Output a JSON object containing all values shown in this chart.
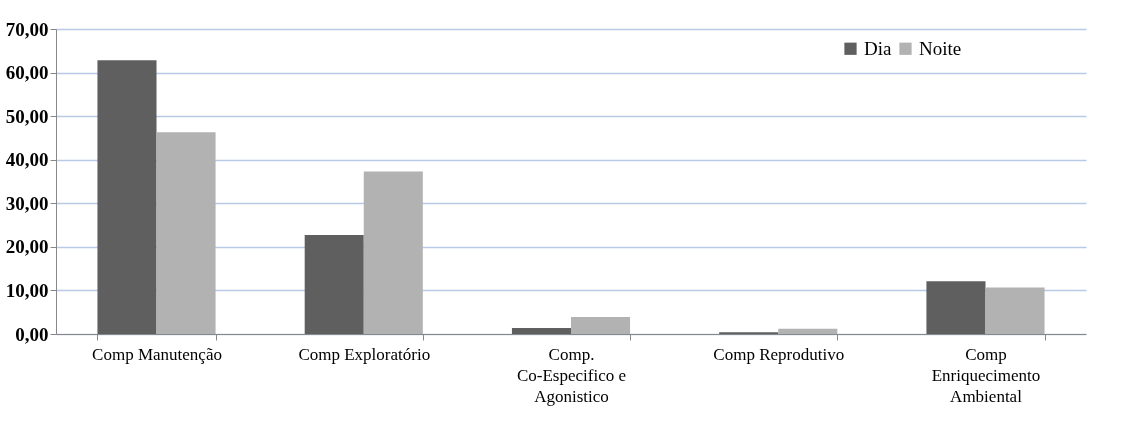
{
  "chart_data": {
    "type": "bar",
    "categories": [
      "Comp Manutenção",
      "Comp Exploratório",
      "Comp. Co-Especifico e Agonistico",
      "Comp Reprodutivo",
      "Comp Enriquecimento Ambiental"
    ],
    "series": [
      {
        "name": "Dia",
        "color": "#5f5f5f",
        "values": [
          62.8,
          22.7,
          1.4,
          0.4,
          12.1
        ]
      },
      {
        "name": "Noite",
        "color": "#b2b2b2",
        "values": [
          46.3,
          37.3,
          3.9,
          1.2,
          10.7
        ]
      }
    ],
    "ylim": [
      0,
      70
    ],
    "yticks": [
      {
        "value": 0,
        "label": "0,00"
      },
      {
        "value": 10,
        "label": "10,00"
      },
      {
        "value": 20,
        "label": "20,00"
      },
      {
        "value": 30,
        "label": "30,00"
      },
      {
        "value": 40,
        "label": "40,00"
      },
      {
        "value": 50,
        "label": "50,00"
      },
      {
        "value": 60,
        "label": "60,00"
      },
      {
        "value": 70,
        "label": "70,00"
      }
    ],
    "grid": "y",
    "legend": "top right"
  }
}
